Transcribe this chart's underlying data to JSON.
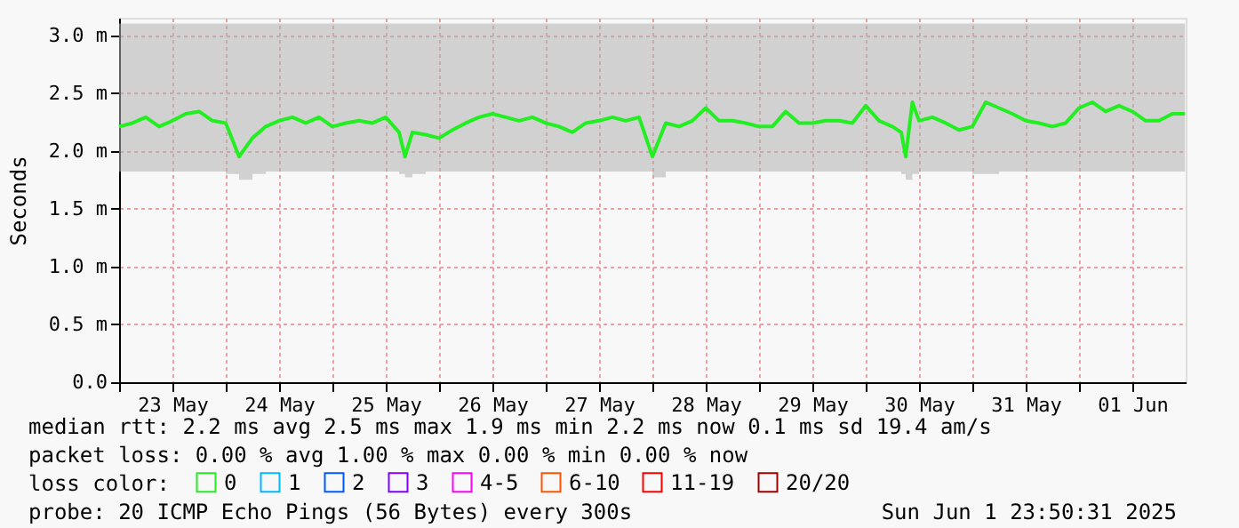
{
  "chart_data": {
    "type": "line",
    "ylabel": "Seconds",
    "x": [
      "2025-05-23T00:00",
      "2025-05-23T03:00",
      "2025-05-23T06:00",
      "2025-05-23T09:00",
      "2025-05-23T12:00",
      "2025-05-23T15:00",
      "2025-05-23T18:00",
      "2025-05-23T21:00",
      "2025-05-24T00:00",
      "2025-05-24T03:00",
      "2025-05-24T06:00",
      "2025-05-24T09:00",
      "2025-05-24T12:00",
      "2025-05-24T15:00",
      "2025-05-24T18:00",
      "2025-05-24T21:00",
      "2025-05-25T00:00",
      "2025-05-25T03:00",
      "2025-05-25T06:00",
      "2025-05-25T09:00",
      "2025-05-25T12:00",
      "2025-05-25T15:00",
      "2025-05-25T16:20",
      "2025-05-25T18:00",
      "2025-05-25T21:00",
      "2025-05-26T00:00",
      "2025-05-26T03:00",
      "2025-05-26T06:00",
      "2025-05-26T09:00",
      "2025-05-26T12:00",
      "2025-05-26T15:00",
      "2025-05-26T18:00",
      "2025-05-26T21:00",
      "2025-05-27T00:00",
      "2025-05-27T03:00",
      "2025-05-27T06:00",
      "2025-05-27T09:00",
      "2025-05-27T12:00",
      "2025-05-27T15:00",
      "2025-05-27T18:00",
      "2025-05-27T21:00",
      "2025-05-28T00:00",
      "2025-05-28T03:00",
      "2025-05-28T06:00",
      "2025-05-28T09:00",
      "2025-05-28T12:00",
      "2025-05-28T15:00",
      "2025-05-28T18:00",
      "2025-05-28T21:00",
      "2025-05-29T00:00",
      "2025-05-29T03:00",
      "2025-05-29T06:00",
      "2025-05-29T09:00",
      "2025-05-29T12:00",
      "2025-05-29T15:00",
      "2025-05-29T18:00",
      "2025-05-29T21:00",
      "2025-05-30T00:00",
      "2025-05-30T03:00",
      "2025-05-30T06:00",
      "2025-05-30T08:00",
      "2025-05-30T09:00",
      "2025-05-30T10:30",
      "2025-05-30T12:00",
      "2025-05-30T15:00",
      "2025-05-30T18:00",
      "2025-05-30T21:00",
      "2025-05-31T00:00",
      "2025-05-31T03:00",
      "2025-05-31T06:00",
      "2025-05-31T09:00",
      "2025-05-31T12:00",
      "2025-05-31T15:00",
      "2025-05-31T18:00",
      "2025-05-31T21:00",
      "2025-06-01T00:00",
      "2025-06-01T03:00",
      "2025-06-01T06:00",
      "2025-06-01T09:00",
      "2025-06-01T12:00",
      "2025-06-01T15:00",
      "2025-06-01T18:00",
      "2025-06-01T21:00",
      "2025-06-01T23:50"
    ],
    "series": [
      {
        "name": "0",
        "color": "#22ee22",
        "values": [
          2.21,
          2.24,
          2.29,
          2.21,
          2.26,
          2.32,
          2.34,
          2.26,
          2.24,
          1.95,
          2.11,
          2.21,
          2.26,
          2.29,
          2.24,
          2.29,
          2.21,
          2.24,
          2.26,
          2.24,
          2.29,
          2.16,
          1.95,
          2.16,
          2.14,
          2.11,
          2.18,
          2.24,
          2.29,
          2.32,
          2.29,
          2.26,
          2.29,
          2.24,
          2.21,
          2.16,
          2.24,
          2.26,
          2.29,
          2.26,
          2.29,
          1.95,
          2.24,
          2.21,
          2.26,
          2.37,
          2.26,
          2.26,
          2.24,
          2.21,
          2.21,
          2.34,
          2.24,
          2.24,
          2.26,
          2.26,
          2.24,
          2.39,
          2.26,
          2.21,
          2.16,
          1.95,
          2.42,
          2.26,
          2.29,
          2.24,
          2.18,
          2.21,
          2.42,
          2.37,
          2.32,
          2.26,
          2.24,
          2.21,
          2.24,
          2.37,
          2.42,
          2.34,
          2.39,
          2.34,
          2.26,
          2.26,
          2.32,
          2.32
        ],
        "lower": [
          1.82,
          1.82,
          1.82,
          1.82,
          1.82,
          1.82,
          1.82,
          1.82,
          1.8,
          1.75,
          1.8,
          1.82,
          1.82,
          1.82,
          1.82,
          1.82,
          1.82,
          1.82,
          1.82,
          1.82,
          1.82,
          1.8,
          1.77,
          1.8,
          1.82,
          1.82,
          1.82,
          1.82,
          1.82,
          1.82,
          1.82,
          1.82,
          1.82,
          1.82,
          1.82,
          1.82,
          1.82,
          1.82,
          1.82,
          1.82,
          1.82,
          1.77,
          1.82,
          1.82,
          1.82,
          1.82,
          1.82,
          1.82,
          1.82,
          1.82,
          1.82,
          1.82,
          1.82,
          1.82,
          1.82,
          1.82,
          1.82,
          1.82,
          1.82,
          1.82,
          1.8,
          1.75,
          1.8,
          1.82,
          1.82,
          1.82,
          1.82,
          1.8,
          1.8,
          1.82,
          1.82,
          1.82,
          1.82,
          1.82,
          1.82,
          1.82,
          1.82,
          1.82,
          1.82,
          1.82,
          1.82,
          1.82,
          1.82,
          1.82
        ],
        "upper": [
          3.1,
          3.1,
          3.1,
          3.1,
          3.1,
          3.1,
          3.1,
          3.1,
          3.1,
          3.1,
          3.1,
          3.1,
          3.1,
          3.1,
          3.1,
          3.1,
          3.1,
          3.1,
          3.1,
          3.1,
          3.1,
          3.1,
          3.1,
          3.1,
          3.1,
          3.1,
          3.1,
          3.1,
          3.1,
          3.1,
          3.1,
          3.1,
          3.1,
          3.1,
          3.1,
          3.1,
          3.1,
          3.1,
          3.1,
          3.1,
          3.1,
          3.1,
          3.1,
          3.1,
          3.1,
          3.1,
          3.1,
          3.1,
          3.1,
          3.1,
          3.1,
          3.1,
          3.1,
          3.1,
          3.1,
          3.1,
          3.1,
          3.1,
          3.1,
          3.1,
          3.1,
          3.1,
          3.1,
          3.1,
          3.1,
          3.1,
          3.1,
          3.1,
          3.1,
          3.1,
          3.1,
          3.1,
          3.1,
          3.1,
          3.1,
          3.1,
          3.1,
          3.1,
          3.1,
          3.1,
          3.1,
          3.1,
          3.1,
          3.1
        ]
      },
      {
        "name": "1",
        "color": "#00b8ff",
        "values": [
          null,
          null,
          null,
          null,
          null,
          null,
          null,
          null,
          null,
          null,
          null,
          null,
          null,
          null,
          null,
          null,
          null,
          null,
          null,
          null,
          null,
          null,
          null,
          null,
          null,
          null,
          null,
          null,
          null,
          null,
          null,
          null,
          null,
          null,
          null,
          null,
          null,
          null,
          null,
          null,
          null,
          null,
          null,
          null,
          null,
          null,
          null,
          null,
          null,
          null,
          null,
          null,
          null,
          null,
          null,
          null,
          null,
          null,
          null,
          null,
          null,
          null,
          null,
          null,
          null,
          null,
          null,
          null,
          null,
          null,
          null,
          null,
          null,
          null,
          null,
          null,
          null,
          null,
          null,
          null,
          null,
          null,
          null,
          null
        ]
      },
      {
        "name": "2",
        "color": "#0059ff",
        "values": [
          null,
          null,
          null,
          null,
          null,
          null,
          null,
          null,
          null,
          null,
          null,
          null,
          null,
          null,
          null,
          null,
          null,
          null,
          null,
          null,
          null,
          null,
          null,
          null,
          null,
          null,
          null,
          null,
          null,
          null,
          null,
          null,
          null,
          null,
          null,
          null,
          null,
          null,
          null,
          null,
          null,
          null,
          null,
          null,
          null,
          null,
          null,
          null,
          null,
          null,
          null,
          null,
          null,
          null,
          null,
          null,
          null,
          null,
          null,
          null,
          null,
          null,
          null,
          null,
          null,
          null,
          null,
          null,
          null,
          null,
          null,
          null,
          null,
          null,
          null,
          null,
          null,
          null,
          null,
          null,
          null,
          null,
          null,
          null
        ]
      },
      {
        "name": "3",
        "color": "#7e00ff",
        "values": [
          null,
          null,
          null,
          null,
          null,
          null,
          null,
          null,
          null,
          null,
          null,
          null,
          null,
          null,
          null,
          null,
          null,
          null,
          null,
          null,
          null,
          null,
          null,
          null,
          null,
          null,
          null,
          null,
          null,
          null,
          null,
          null,
          null,
          null,
          null,
          null,
          null,
          null,
          null,
          null,
          null,
          null,
          null,
          null,
          null,
          null,
          null,
          null,
          null,
          null,
          null,
          null,
          null,
          null,
          null,
          null,
          null,
          null,
          null,
          null,
          null,
          null,
          null,
          null,
          null,
          null,
          null,
          null,
          null,
          null,
          null,
          null,
          null,
          null,
          null,
          null,
          null,
          null,
          null,
          null,
          null,
          null,
          null,
          null
        ]
      },
      {
        "name": "4-5",
        "color": "#ff00ff",
        "values": [
          null,
          null,
          null,
          null,
          null,
          null,
          null,
          null,
          null,
          null,
          null,
          null,
          null,
          null,
          null,
          null,
          null,
          null,
          null,
          null,
          null,
          null,
          null,
          null,
          null,
          null,
          null,
          null,
          null,
          null,
          null,
          null,
          null,
          null,
          null,
          null,
          null,
          null,
          null,
          null,
          null,
          null,
          null,
          null,
          null,
          null,
          null,
          null,
          null,
          null,
          null,
          null,
          null,
          null,
          null,
          null,
          null,
          null,
          null,
          null,
          null,
          null,
          null,
          null,
          null,
          null,
          null,
          null,
          null,
          null,
          null,
          null,
          null,
          null,
          null,
          null,
          null,
          null,
          null,
          null,
          null,
          null,
          null,
          null
        ]
      },
      {
        "name": "6-10",
        "color": "#ff5500",
        "values": [
          null,
          null,
          null,
          null,
          null,
          null,
          null,
          null,
          null,
          null,
          null,
          null,
          null,
          null,
          null,
          null,
          null,
          null,
          null,
          null,
          null,
          null,
          null,
          null,
          null,
          null,
          null,
          null,
          null,
          null,
          null,
          null,
          null,
          null,
          null,
          null,
          null,
          null,
          null,
          null,
          null,
          null,
          null,
          null,
          null,
          null,
          null,
          null,
          null,
          null,
          null,
          null,
          null,
          null,
          null,
          null,
          null,
          null,
          null,
          null,
          null,
          null,
          null,
          null,
          null,
          null,
          null,
          null,
          null,
          null,
          null,
          null,
          null,
          null,
          null,
          null,
          null,
          null,
          null,
          null,
          null,
          null,
          null,
          null
        ]
      },
      {
        "name": "11-19",
        "color": "#ff0000",
        "values": [
          null,
          null,
          null,
          null,
          null,
          null,
          null,
          null,
          null,
          null,
          null,
          null,
          null,
          null,
          null,
          null,
          null,
          null,
          null,
          null,
          null,
          null,
          null,
          null,
          null,
          null,
          null,
          null,
          null,
          null,
          null,
          null,
          null,
          null,
          null,
          null,
          null,
          null,
          null,
          null,
          null,
          null,
          null,
          null,
          null,
          null,
          null,
          null,
          null,
          null,
          null,
          null,
          null,
          null,
          null,
          null,
          null,
          null,
          null,
          null,
          null,
          null,
          null,
          null,
          null,
          null,
          null,
          null,
          null,
          null,
          null,
          null,
          null,
          null,
          null,
          null,
          null,
          null,
          null,
          null,
          null,
          null,
          null,
          null
        ]
      },
      {
        "name": "20/20",
        "color": "#a10000",
        "values": [
          null,
          null,
          null,
          null,
          null,
          null,
          null,
          null,
          null,
          null,
          null,
          null,
          null,
          null,
          null,
          null,
          null,
          null,
          null,
          null,
          null,
          null,
          null,
          null,
          null,
          null,
          null,
          null,
          null,
          null,
          null,
          null,
          null,
          null,
          null,
          null,
          null,
          null,
          null,
          null,
          null,
          null,
          null,
          null,
          null,
          null,
          null,
          null,
          null,
          null,
          null,
          null,
          null,
          null,
          null,
          null,
          null,
          null,
          null,
          null,
          null,
          null,
          null,
          null,
          null,
          null,
          null,
          null,
          null,
          null,
          null,
          null,
          null,
          null,
          null,
          null,
          null,
          null,
          null,
          null,
          null,
          null,
          null,
          null
        ]
      }
    ],
    "legend_title": "loss color:",
    "legend": "bottom",
    "xlim": [
      "2025-05-23T00:00",
      "2025-06-02T00:00"
    ],
    "xticks": [
      {
        "value": "2025-05-23T00:00",
        "label": null
      },
      {
        "value": "2025-05-23T12:00",
        "label": "23 May"
      },
      {
        "value": "2025-05-24T00:00",
        "label": null
      },
      {
        "value": "2025-05-24T12:00",
        "label": "24 May"
      },
      {
        "value": "2025-05-25T00:00",
        "label": null
      },
      {
        "value": "2025-05-25T12:00",
        "label": "25 May"
      },
      {
        "value": "2025-05-26T00:00",
        "label": null
      },
      {
        "value": "2025-05-26T12:00",
        "label": "26 May"
      },
      {
        "value": "2025-05-27T00:00",
        "label": null
      },
      {
        "value": "2025-05-27T12:00",
        "label": "27 May"
      },
      {
        "value": "2025-05-28T00:00",
        "label": null
      },
      {
        "value": "2025-05-28T12:00",
        "label": "28 May"
      },
      {
        "value": "2025-05-29T00:00",
        "label": null
      },
      {
        "value": "2025-05-29T12:00",
        "label": "29 May"
      },
      {
        "value": "2025-05-30T00:00",
        "label": null
      },
      {
        "value": "2025-05-30T12:00",
        "label": "30 May"
      },
      {
        "value": "2025-05-31T00:00",
        "label": null
      },
      {
        "value": "2025-05-31T12:00",
        "label": "31 May"
      },
      {
        "value": "2025-06-01T00:00",
        "label": null
      },
      {
        "value": "2025-06-01T12:00",
        "label": "01 Jun"
      }
    ],
    "ylim": [
      0,
      3.15
    ],
    "yticks": [
      {
        "value": 0,
        "label": "0.0"
      },
      {
        "value": 0.5,
        "label": "0.5 m"
      },
      {
        "value": 1,
        "label": "1.0 m"
      },
      {
        "value": 1.5,
        "label": "1.5 m"
      },
      {
        "value": 2,
        "label": "2.0 m"
      },
      {
        "value": 2.5,
        "label": "2.5 m"
      },
      {
        "value": 3,
        "label": "3.0 m"
      }
    ],
    "grid": true,
    "line_style": "solid",
    "marker": "none",
    "annotations": [
      "median rtt:  2.2 ms avg  2.5 ms max  1.9 ms min  2.2 ms now  0.1 ms sd  19.4   am/s",
      "packet loss: 0.00 % avg  1.00 % max  0.00 % min  0.00 % now",
      "probe:       20 ICMP Echo Pings (56 Bytes) every 300s",
      "Sun Jun  1 23:50:31 2025"
    ]
  }
}
